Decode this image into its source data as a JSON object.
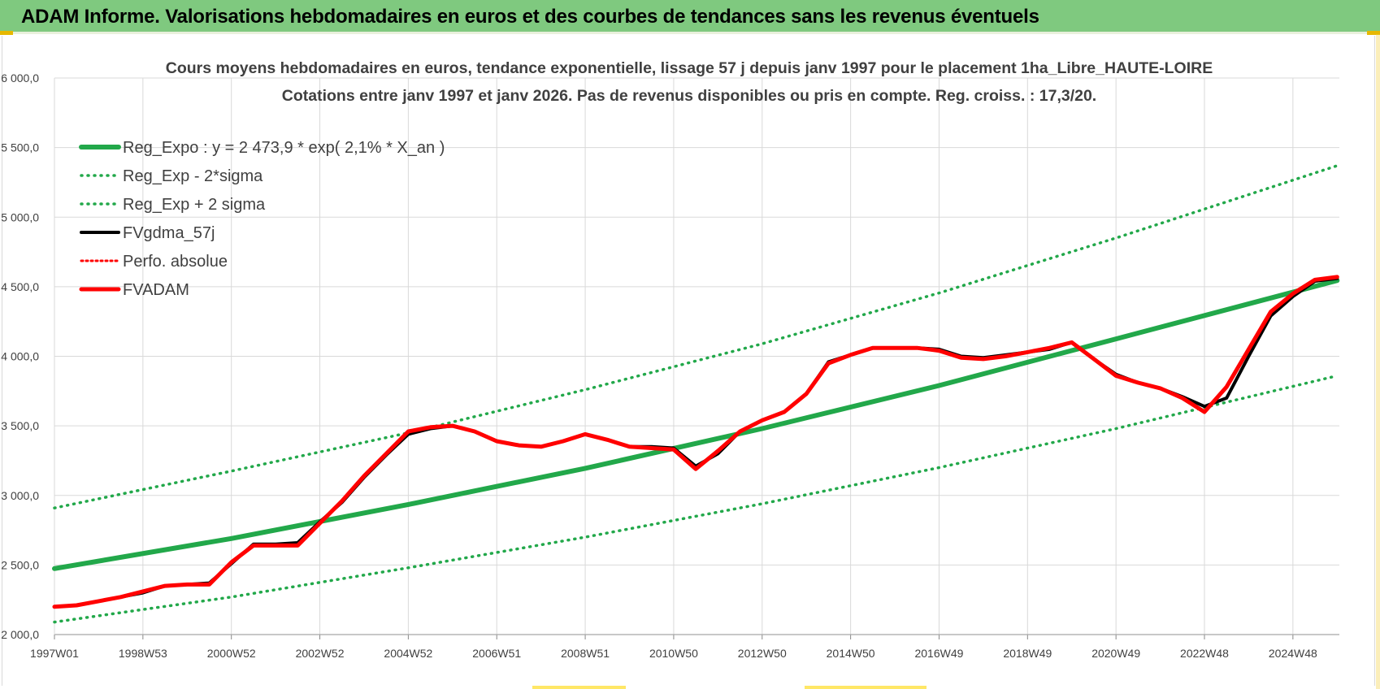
{
  "banner": {
    "title": "ADAM Informe. Valorisations hebdomadaires en euros et des courbes de tendances sans les revenus éventuels"
  },
  "colors": {
    "banner_bg": "#7fc97f",
    "green_line": "#22a84a",
    "black_line": "#000000",
    "red_line": "#ff0000"
  },
  "chart_data": {
    "type": "line",
    "title": "Cours moyens hebdomadaires en euros, tendance exponentielle, lissage 57 j depuis janv 1997  pour le placement 1ha_Libre_HAUTE-LOIRE",
    "subtitle": "Cotations entre janv 1997 et janv 2026. Pas de revenus disponibles ou pris en compte. Reg. croiss. : 17,3/20.",
    "x_tick_labels": [
      "1997W01",
      "1998W53",
      "2000W52",
      "2002W52",
      "2004W52",
      "2006W51",
      "2008W51",
      "2010W50",
      "2012W50",
      "2014W50",
      "2016W49",
      "2018W49",
      "2020W49",
      "2022W48",
      "2024W48"
    ],
    "x_tick_years": [
      1997,
      1999,
      2001,
      2003,
      2005,
      2007,
      2009,
      2011,
      2013,
      2015,
      2017,
      2019,
      2021,
      2023,
      2025
    ],
    "y_tick_labels": [
      "2 000,0",
      "2 500,0",
      "3 000,0",
      "3 500,0",
      "4 000,0",
      "4 500,0",
      "5 000,0",
      "5 500,0",
      "6 000,0"
    ],
    "ylim": [
      2000,
      6000
    ],
    "xlim": [
      1997,
      2026.05
    ],
    "grid": true,
    "legend_position": "top-left",
    "legend": [
      {
        "label": "Reg_Expo : y = 2 473,9 * exp( 2,1% *  X_an )",
        "color": "#22a84a",
        "style": "solid"
      },
      {
        "label": "Reg_Exp - 2*sigma",
        "color": "#22a84a",
        "style": "dotted"
      },
      {
        "label": "Reg_Exp + 2 sigma",
        "color": "#22a84a",
        "style": "dotted"
      },
      {
        "label": "FVgdma_57j",
        "color": "#000000",
        "style": "solid"
      },
      {
        "label": "Perfo. absolue",
        "color": "#ff0000",
        "style": "dotted"
      },
      {
        "label": "FVADAM",
        "color": "#ff0000",
        "style": "solid"
      }
    ],
    "series": [
      {
        "name": "Reg_Expo : y = 2 473,9 * exp( 2,1% *  X_an )",
        "x": [
          1997,
          2001,
          2005,
          2009,
          2013,
          2017,
          2021,
          2026
        ],
        "y": [
          2474,
          2690,
          2935,
          3195,
          3480,
          3790,
          4125,
          4545
        ]
      },
      {
        "name": "Reg_Exp - 2*sigma",
        "x": [
          1997,
          2001,
          2005,
          2009,
          2013,
          2017,
          2021,
          2026
        ],
        "y": [
          2090,
          2270,
          2480,
          2700,
          2940,
          3200,
          3480,
          3860
        ]
      },
      {
        "name": "Reg_Exp + 2 sigma",
        "x": [
          1997,
          2001,
          2005,
          2009,
          2013,
          2017,
          2021,
          2026
        ],
        "y": [
          2910,
          3175,
          3450,
          3760,
          4090,
          4455,
          4850,
          5370
        ]
      },
      {
        "name": "FVgdma_57j",
        "x": [
          1997,
          1997.5,
          1998,
          1998.5,
          1999,
          1999.5,
          2000,
          2000.5,
          2001,
          2001.5,
          2002,
          2002.5,
          2003,
          2003.5,
          2004,
          2004.5,
          2005,
          2005.5,
          2006,
          2006.5,
          2007,
          2007.5,
          2008,
          2008.5,
          2009,
          2009.5,
          2010,
          2010.5,
          2011,
          2011.5,
          2012,
          2012.5,
          2013,
          2013.5,
          2014,
          2014.5,
          2015,
          2015.5,
          2016,
          2016.5,
          2017,
          2017.5,
          2018,
          2018.5,
          2019,
          2019.5,
          2020,
          2020.5,
          2021,
          2021.5,
          2022,
          2022.5,
          2023,
          2023.5,
          2024,
          2024.5,
          2025,
          2025.5,
          2026
        ],
        "y": [
          2200,
          2210,
          2240,
          2270,
          2300,
          2350,
          2360,
          2370,
          2510,
          2650,
          2650,
          2660,
          2810,
          2950,
          3130,
          3290,
          3440,
          3480,
          3500,
          3460,
          3390,
          3360,
          3350,
          3390,
          3440,
          3400,
          3350,
          3350,
          3340,
          3210,
          3300,
          3460,
          3540,
          3600,
          3730,
          3960,
          4010,
          4060,
          4060,
          4060,
          4050,
          4000,
          3990,
          4010,
          4030,
          4050,
          4100,
          3980,
          3870,
          3810,
          3770,
          3710,
          3640,
          3700,
          4000,
          4290,
          4430,
          4540,
          4560
        ]
      },
      {
        "name": "FVADAM",
        "x": [
          1997,
          1997.5,
          1998,
          1998.5,
          1999,
          1999.5,
          2000,
          2000.5,
          2001,
          2001.5,
          2002,
          2002.5,
          2003,
          2003.5,
          2004,
          2004.5,
          2005,
          2005.5,
          2006,
          2006.5,
          2007,
          2007.5,
          2008,
          2008.5,
          2009,
          2009.5,
          2010,
          2010.5,
          2011,
          2011.5,
          2012,
          2012.5,
          2013,
          2013.5,
          2014,
          2014.5,
          2015,
          2015.5,
          2016,
          2016.5,
          2017,
          2017.5,
          2018,
          2018.5,
          2019,
          2019.5,
          2020,
          2020.5,
          2021,
          2021.5,
          2022,
          2022.5,
          2023,
          2023.5,
          2024,
          2024.5,
          2025,
          2025.5,
          2026
        ],
        "y": [
          2200,
          2210,
          2240,
          2270,
          2310,
          2350,
          2360,
          2360,
          2520,
          2640,
          2640,
          2640,
          2800,
          2960,
          3140,
          3300,
          3460,
          3490,
          3500,
          3460,
          3390,
          3360,
          3350,
          3390,
          3440,
          3400,
          3350,
          3340,
          3330,
          3190,
          3320,
          3460,
          3540,
          3600,
          3730,
          3950,
          4010,
          4060,
          4060,
          4060,
          4040,
          3990,
          3980,
          4000,
          4030,
          4060,
          4100,
          3980,
          3860,
          3810,
          3770,
          3700,
          3600,
          3780,
          4050,
          4320,
          4450,
          4550,
          4570
        ]
      }
    ]
  }
}
